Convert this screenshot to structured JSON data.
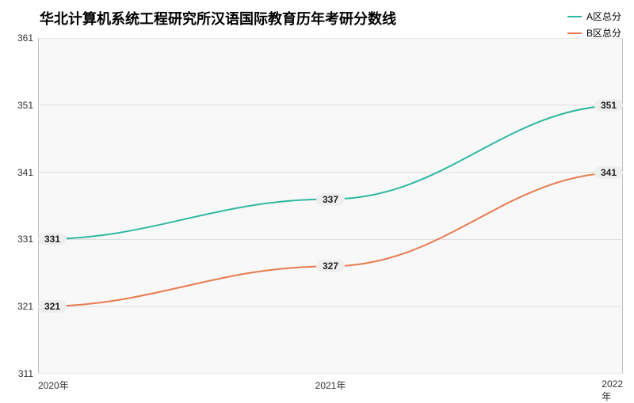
{
  "chart": {
    "type": "line",
    "title": "华北计算机系统工程研究所汉语国际教育历年考研分数线",
    "title_fontsize": 18,
    "background_color": "#ffffff",
    "plot_background": "#f8f8f8",
    "grid_color": "#dddddd",
    "axis_color": "#888888",
    "legend_position": "top-right",
    "x": {
      "categories": [
        "2020年",
        "2021年",
        "2022年"
      ],
      "label_fontsize": 12
    },
    "y": {
      "min": 311,
      "max": 361,
      "tick_step": 10,
      "ticks": [
        311,
        321,
        331,
        341,
        351,
        361
      ],
      "label_fontsize": 12
    },
    "series": [
      {
        "name": "A区总分",
        "color": "#2fb8a0",
        "values": [
          331,
          337,
          351
        ],
        "line_width": 2
      },
      {
        "name": "B区总分",
        "color": "#e87b4e",
        "values": [
          321,
          327,
          341
        ],
        "line_width": 2
      }
    ],
    "point_label_bg": "#eeeeee",
    "point_label_fontsize": 12
  }
}
